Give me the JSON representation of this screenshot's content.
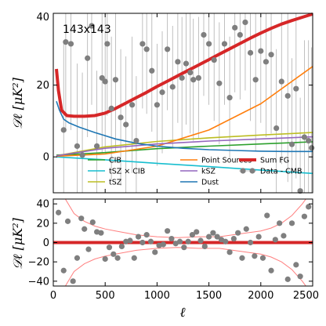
{
  "chart_data": [
    {
      "type": "line",
      "panel": "top",
      "annotation": "143x143",
      "ylabel": "𝒟ℓ  [μK²]",
      "xlim": [
        0,
        2500
      ],
      "ylim": [
        -10,
        40
      ],
      "x_ticks": [
        0,
        500,
        1000,
        1500,
        2000,
        2500
      ],
      "y_ticks": [
        0,
        20,
        40
      ],
      "x_tick_labels_shown": false,
      "grid": false,
      "legend_placement": "bottom",
      "legend": [
        {
          "name": "CIB",
          "color": "#2ca02c",
          "kind": "line"
        },
        {
          "name": "tSZ × CIB",
          "color": "#17becf",
          "kind": "line"
        },
        {
          "name": "tSZ",
          "color": "#bcbd22",
          "kind": "line"
        },
        {
          "name": "Point Sources",
          "color": "#ff7f0e",
          "kind": "line"
        },
        {
          "name": "kSZ",
          "color": "#9467bd",
          "kind": "line"
        },
        {
          "name": "Dust",
          "color": "#1f77b4",
          "kind": "line"
        },
        {
          "name": "Sum FG",
          "color": "#d62728",
          "kind": "thick-line"
        },
        {
          "name": "Data - CMB",
          "color": "#808080",
          "kind": "point"
        }
      ],
      "series": [
        {
          "name": "CIB",
          "color": "#2ca02c",
          "x": [
            30,
            500,
            1000,
            1500,
            2000,
            2500
          ],
          "y": [
            0.5,
            1.2,
            2.3,
            3.0,
            3.6,
            4.2
          ]
        },
        {
          "name": "tSZ × CIB",
          "color": "#17becf",
          "x": [
            30,
            500,
            1000,
            1500,
            2000,
            2500
          ],
          "y": [
            0,
            -0.8,
            -1.8,
            -2.7,
            -3.7,
            -4.6
          ]
        },
        {
          "name": "tSZ",
          "color": "#bcbd22",
          "x": [
            30,
            500,
            1000,
            1500,
            2000,
            2500
          ],
          "y": [
            0.3,
            2.8,
            4.3,
            5.3,
            6.1,
            6.8
          ]
        },
        {
          "name": "Point Sources",
          "color": "#ff7f0e",
          "x": [
            30,
            500,
            1000,
            1500,
            2000,
            2500
          ],
          "y": [
            0.2,
            0.8,
            3.0,
            7.5,
            14.8,
            25.2
          ]
        },
        {
          "name": "kSZ",
          "color": "#9467bd",
          "x": [
            30,
            500,
            1000,
            1500,
            2000,
            2500
          ],
          "y": [
            0.3,
            2.4,
            3.6,
            4.4,
            5.0,
            5.6
          ]
        },
        {
          "name": "Dust",
          "color": "#1f77b4",
          "x": [
            30,
            60,
            100,
            150,
            250,
            400,
            600,
            800,
            1000,
            1250,
            1500,
            1750,
            2000,
            2250,
            2500
          ],
          "y": [
            15.5,
            13.0,
            10.5,
            9.5,
            8.3,
            6.8,
            5.0,
            3.8,
            3.0,
            2.4,
            2.0,
            1.8,
            1.6,
            1.5,
            1.5
          ]
        },
        {
          "name": "Sum FG",
          "color": "#d62728",
          "x": [
            30,
            50,
            80,
            130,
            200,
            300,
            400,
            500,
            600,
            700,
            800,
            900,
            1000,
            1100,
            1200,
            1300,
            1400,
            1500,
            1600,
            1700,
            1800,
            1900,
            2000,
            2100,
            2200,
            2300,
            2400,
            2500
          ],
          "y": [
            24.5,
            18.5,
            13.0,
            11.5,
            11.3,
            11.3,
            11.5,
            12.2,
            13.5,
            15.0,
            16.5,
            18.0,
            19.6,
            21.1,
            22.6,
            24.1,
            25.6,
            27.1,
            28.6,
            30.1,
            31.6,
            33.1,
            34.5,
            35.8,
            37.0,
            38.0,
            38.9,
            39.8
          ]
        }
      ],
      "data_points": {
        "name": "Data - CMB",
        "x": [
          100,
          120,
          170,
          230,
          280,
          330,
          370,
          420,
          470,
          500,
          520,
          560,
          600,
          650,
          700,
          760,
          800,
          860,
          900,
          950,
          1000,
          1050,
          1100,
          1150,
          1200,
          1240,
          1280,
          1320,
          1350,
          1400,
          1450,
          1500,
          1550,
          1600,
          1650,
          1700,
          1750,
          1800,
          1850,
          1900,
          1950,
          2000,
          2050,
          2100,
          2150,
          2200,
          2260,
          2300,
          2340,
          2380,
          2420,
          2460,
          2490
        ],
        "y": [
          7.5,
          32.0,
          31.5,
          3.0,
          0.5,
          27.5,
          36.5,
          3.0,
          22.0,
          21.0,
          31.5,
          13.5,
          21.5,
          11.0,
          9.0,
          14.5,
          4.5,
          31.5,
          30.0,
          24.0,
          14.5,
          18.0,
          30.0,
          19.5,
          26.5,
          22.0,
          26.0,
          23.5,
          21.5,
          22.0,
          34.0,
          31.5,
          27.0,
          20.5,
          31.5,
          16.5,
          36.0,
          34.0,
          37.5,
          29.0,
          21.5,
          29.5,
          26.5,
          28.5,
          8.0,
          21.0,
          17.0,
          3.5,
          19.0,
          -9.5,
          5.5,
          4.5,
          2.5
        ],
        "err": [
          25,
          24,
          24,
          23,
          23,
          22,
          22,
          21,
          21,
          20,
          20,
          20,
          20,
          19,
          19,
          19,
          18,
          18,
          18,
          17,
          17,
          17,
          17,
          17,
          17,
          17,
          17,
          17,
          17,
          17,
          17,
          17,
          17,
          17,
          17,
          17,
          18,
          18,
          19,
          19,
          20,
          20,
          21,
          22,
          22,
          23,
          24,
          24,
          25,
          26,
          27,
          28,
          28
        ]
      }
    },
    {
      "type": "scatter",
      "panel": "bottom",
      "xlabel": "ℓ",
      "ylabel": "𝒟ℓ  [μK²]",
      "xlim": [
        0,
        2500
      ],
      "ylim": [
        -45,
        45
      ],
      "x_ticks": [
        0,
        500,
        1000,
        1500,
        2000,
        2500
      ],
      "y_ticks": [
        -40,
        -20,
        0,
        20,
        40
      ],
      "grid": false,
      "zero_line": {
        "y": 0,
        "color": "#d62728"
      },
      "envelope": {
        "color": "#ff7f7f",
        "x": [
          30,
          100,
          200,
          300,
          400,
          500,
          600,
          800,
          1000,
          1200,
          1400,
          1600,
          1800,
          2000,
          2100,
          2200,
          2300,
          2400,
          2500
        ],
        "upper": [
          80,
          48,
          30,
          22,
          17,
          14,
          12,
          8,
          6,
          5,
          6,
          6,
          9,
          12,
          15,
          20,
          28,
          40,
          55
        ],
        "lower": [
          -80,
          -48,
          -30,
          -22,
          -17,
          -14,
          -12,
          -8,
          -6,
          -5,
          -6,
          -6,
          -9,
          -12,
          -15,
          -20,
          -28,
          -40,
          -55
        ]
      },
      "data_points": {
        "x": [
          50,
          100,
          140,
          190,
          230,
          270,
          300,
          340,
          380,
          420,
          460,
          500,
          540,
          580,
          620,
          660,
          700,
          740,
          780,
          820,
          860,
          900,
          940,
          980,
          1020,
          1060,
          1100,
          1140,
          1180,
          1220,
          1260,
          1300,
          1340,
          1380,
          1420,
          1460,
          1500,
          1540,
          1580,
          1620,
          1660,
          1700,
          1740,
          1780,
          1820,
          1860,
          1900,
          1940,
          1980,
          2020,
          2060,
          2100,
          2140,
          2180,
          2220,
          2260,
          2300,
          2340,
          2380,
          2420,
          2460
        ],
        "y": [
          31,
          -29,
          22,
          -40,
          -16,
          25,
          14,
          -7,
          21,
          11,
          10,
          -17,
          -5,
          -12,
          -16,
          -4,
          1,
          2,
          -16,
          6,
          0,
          8,
          1,
          -10,
          -3,
          -2,
          12,
          4,
          -1,
          1,
          -5,
          1,
          8,
          11,
          2,
          -4,
          6,
          10,
          6,
          3,
          1,
          -10,
          4,
          10,
          -16,
          14,
          0,
          -14,
          6,
          -16,
          28,
          -29,
          3,
          20,
          7,
          -38,
          20,
          -23,
          -35,
          27,
          37
        ]
      }
    }
  ],
  "text": {
    "annotation": "143x143",
    "ylabel_top": "𝒟ℓ  [μK²]",
    "ylabel_bottom": "𝒟ℓ  [μK²]",
    "xlabel": "ℓ",
    "top_ticks": {
      "y": [
        "0",
        "20",
        "40"
      ]
    },
    "bottom_ticks": {
      "y": [
        "40",
        "20",
        "0",
        "−20",
        "−40"
      ],
      "x": [
        "0",
        "500",
        "1000",
        "1500",
        "2000",
        "2500"
      ]
    }
  }
}
